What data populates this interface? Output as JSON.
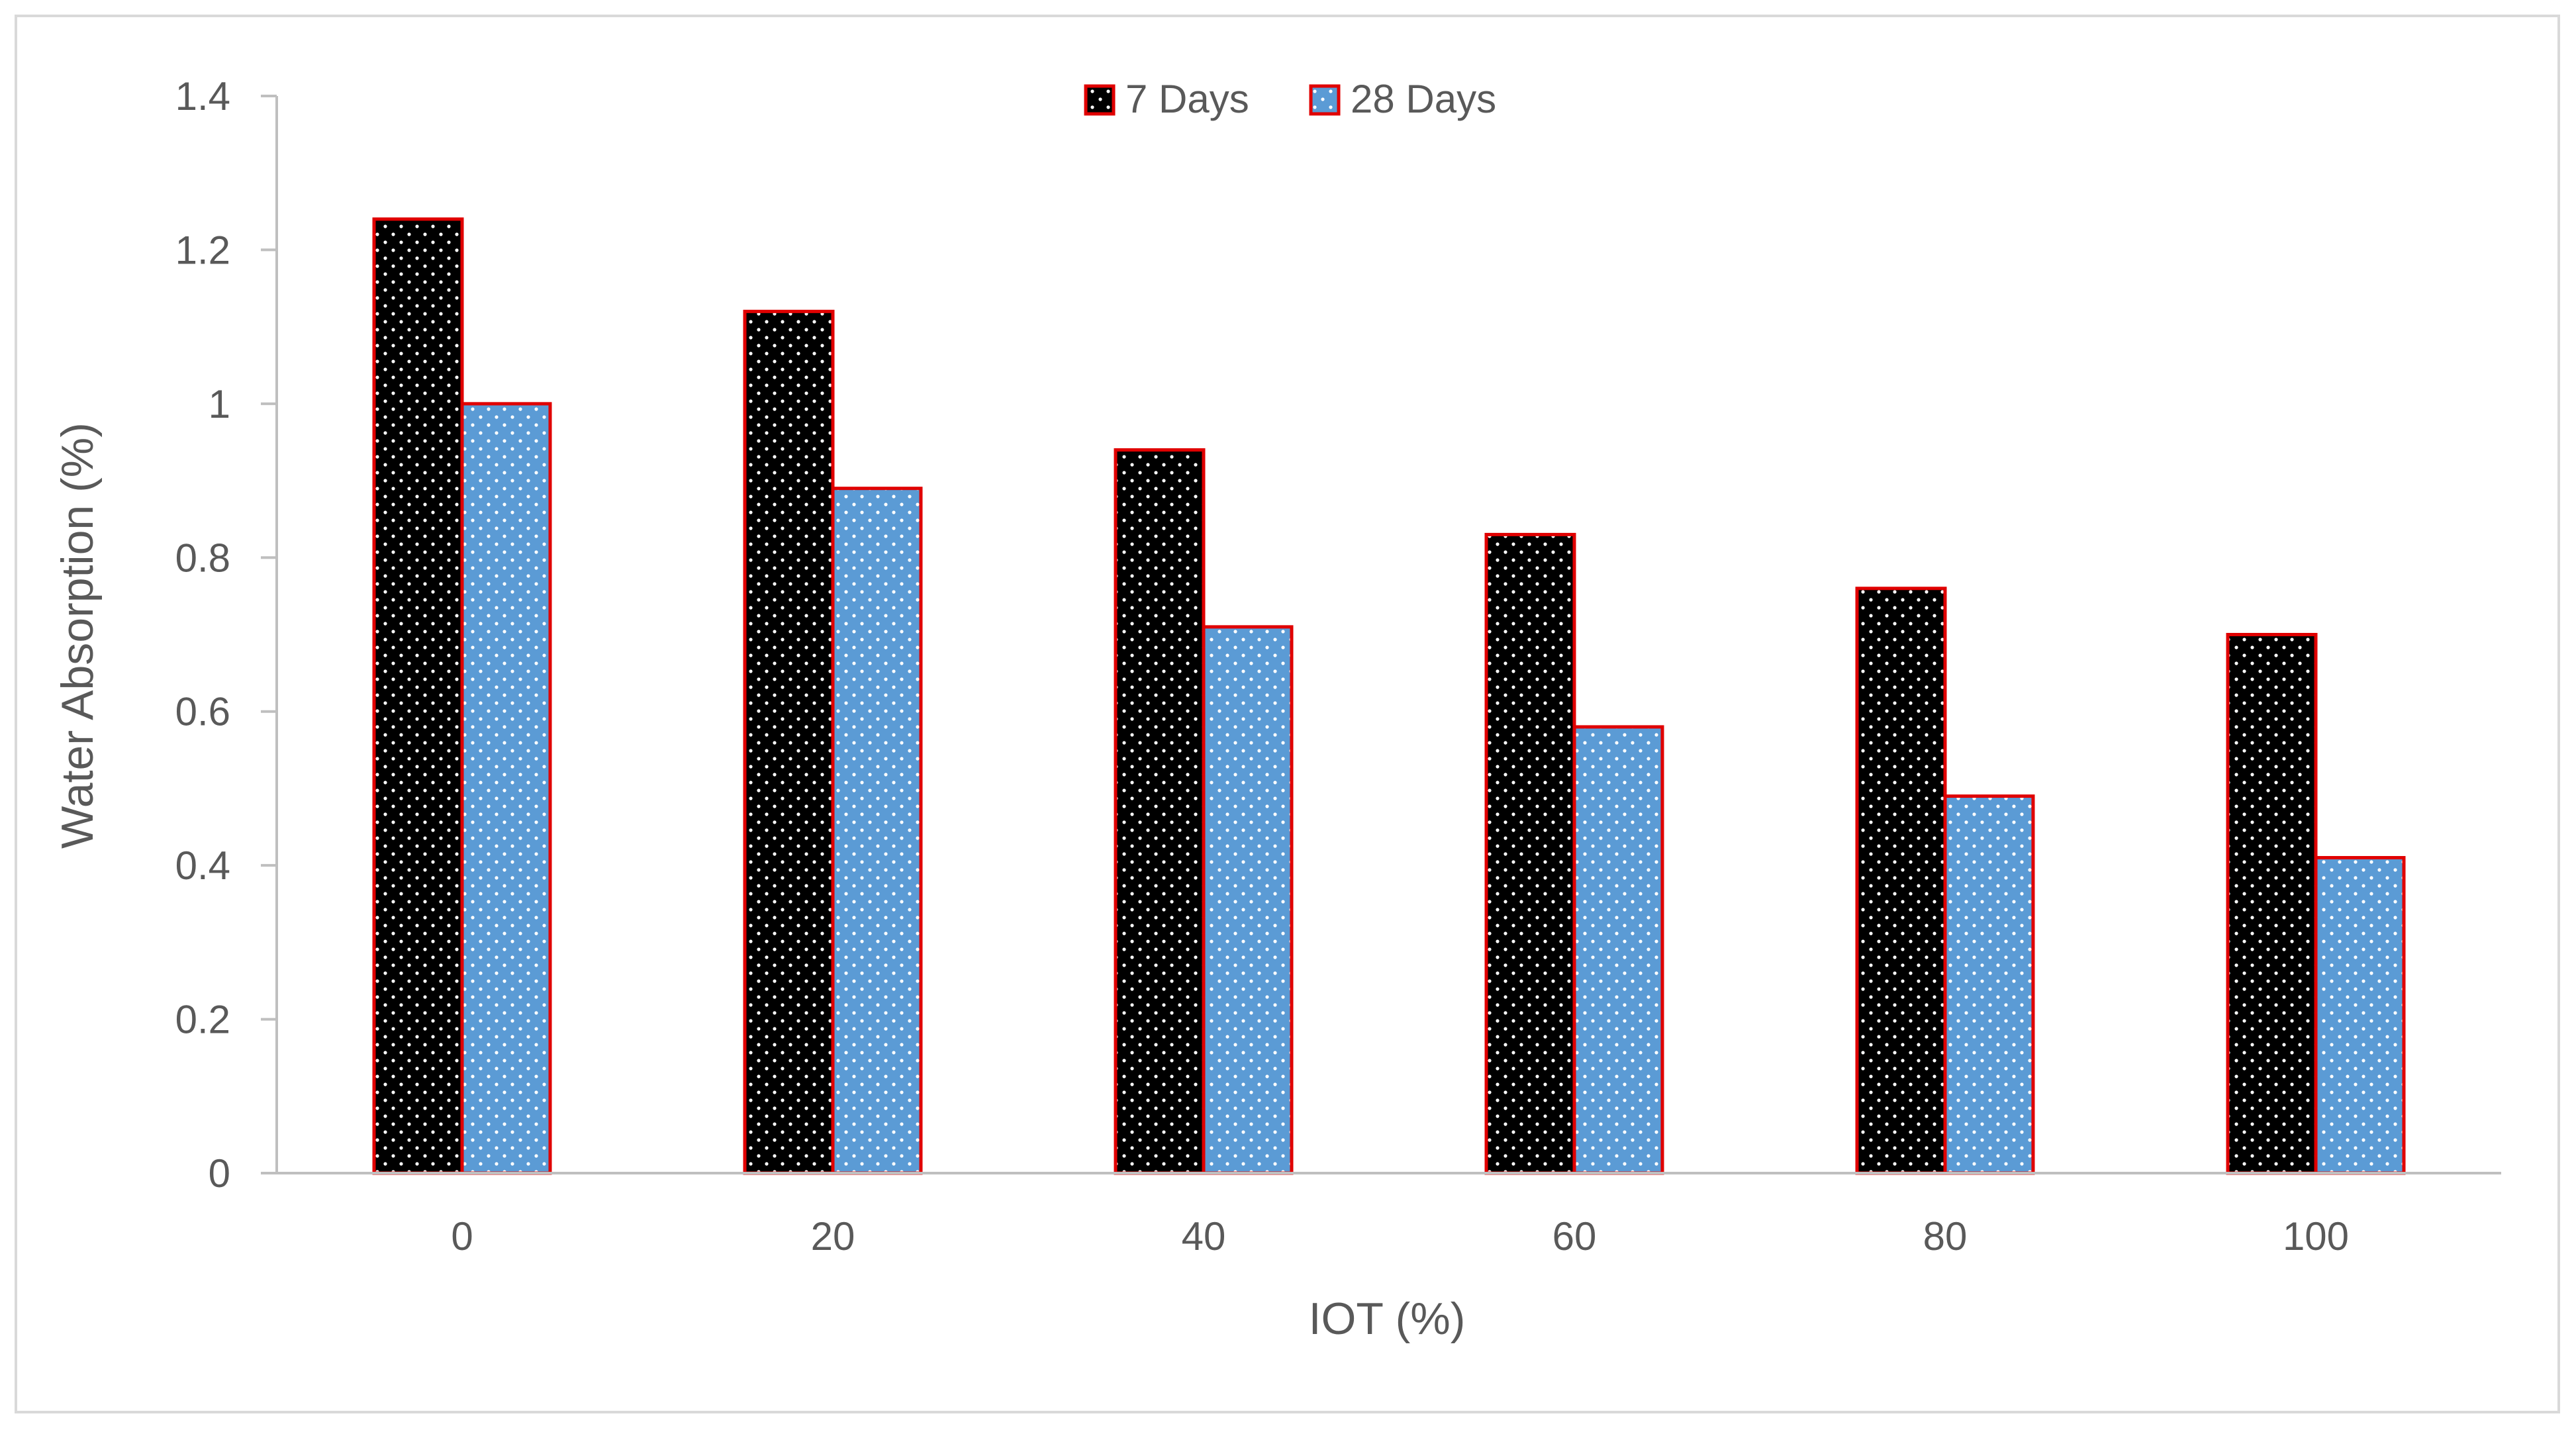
{
  "chart_data": {
    "type": "bar",
    "categories": [
      "0",
      "20",
      "40",
      "60",
      "80",
      "100"
    ],
    "series": [
      {
        "name": "7 Days",
        "values": [
          1.24,
          1.12,
          0.94,
          0.83,
          0.76,
          0.7
        ],
        "fill": "#000000",
        "dot_color": "#ffffff",
        "edge_color": "#e00000"
      },
      {
        "name": "28 Days",
        "values": [
          1.0,
          0.89,
          0.71,
          0.58,
          0.49,
          0.41
        ],
        "fill": "#5b9bd5",
        "dot_color": "#ffffff",
        "edge_color": "#e00000"
      }
    ],
    "yticks": [
      "0",
      "0.2",
      "0.4",
      "0.6",
      "0.8",
      "1",
      "1.2",
      "1.4"
    ],
    "ylim": [
      0,
      1.4
    ],
    "xlabel": "IOT (%)",
    "ylabel": "Water Absorption (%)",
    "legend_position": "top-center",
    "grid": false,
    "axis_color": "#bfbfbf",
    "text_color": "#595959"
  }
}
